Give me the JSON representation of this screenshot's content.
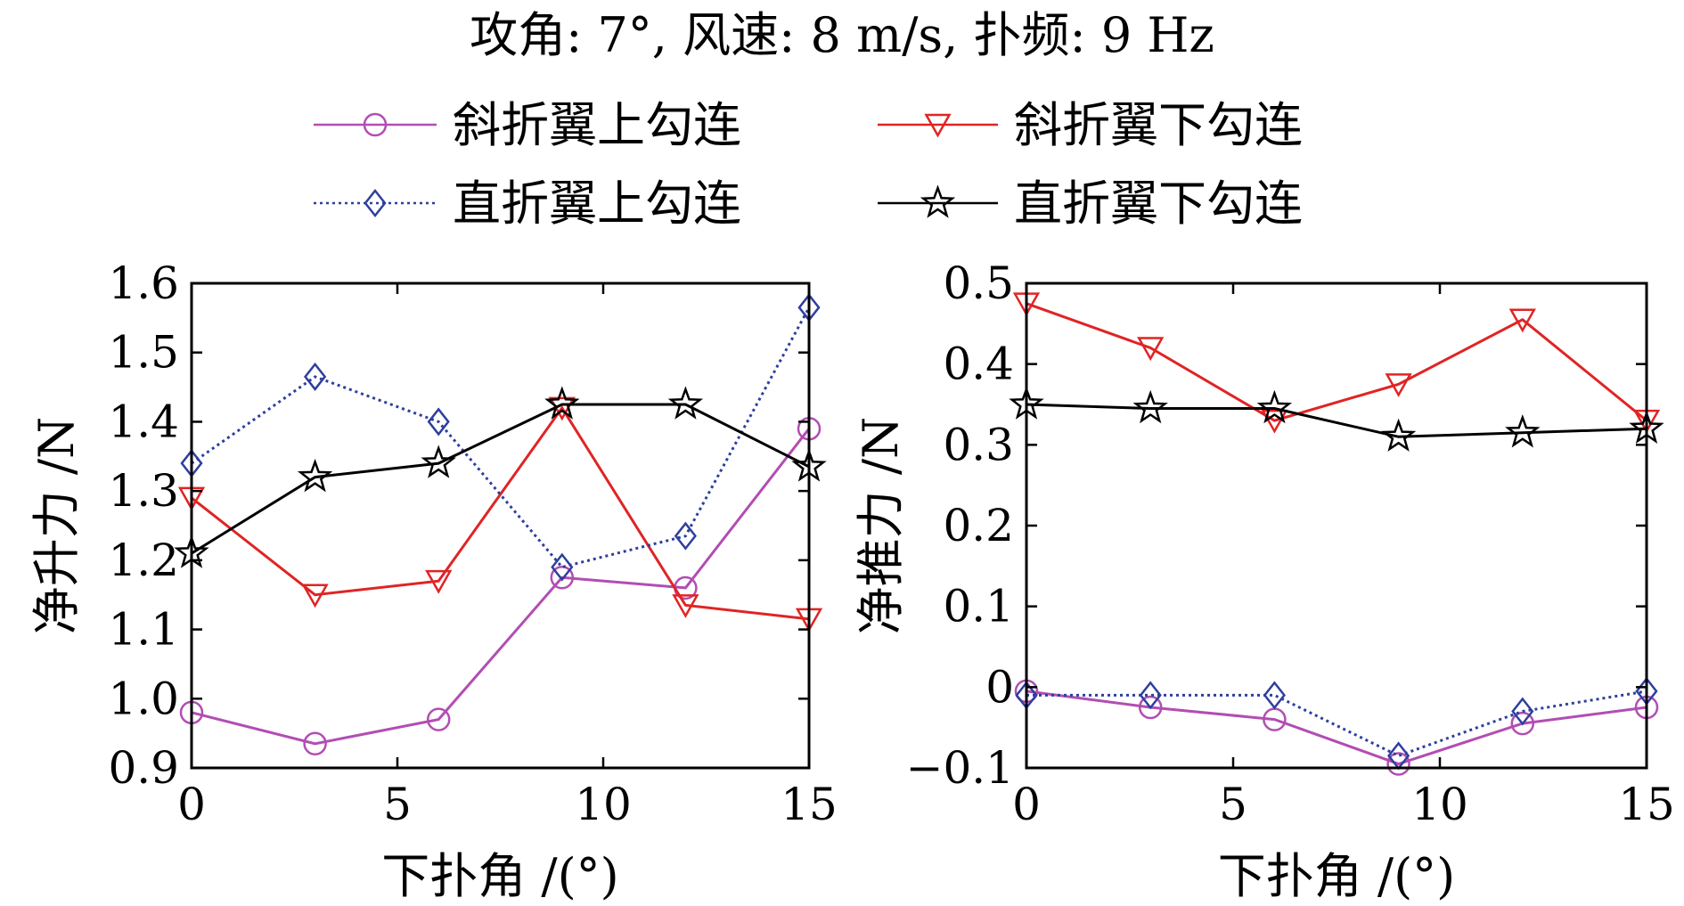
{
  "figure_title": "攻角: 7°, 风速: 8 m/s, 扑频: 9 Hz",
  "legend": [
    {
      "label": "斜折翼上勾连",
      "color": "#B24DB3",
      "marker": "circle",
      "dash": "solid"
    },
    {
      "label": "斜折翼下勾连",
      "color": "#E02424",
      "marker": "triangle-down",
      "dash": "solid"
    },
    {
      "label": "直折翼上勾连",
      "color": "#2E3F9E",
      "marker": "diamond",
      "dash": "dotted"
    },
    {
      "label": "直折翼下勾连",
      "color": "#000000",
      "marker": "star",
      "dash": "solid"
    }
  ],
  "chart_data": [
    {
      "type": "line",
      "xlabel": "下扑角 /(°)",
      "ylabel": "净升力 /N",
      "xlim": [
        0,
        15
      ],
      "ylim": [
        0.9,
        1.6
      ],
      "xticks": [
        0,
        5,
        10,
        15
      ],
      "xtick_labels": [
        "0",
        "5",
        "10",
        "15"
      ],
      "yticks": [
        0.9,
        1.0,
        1.1,
        1.2,
        1.3,
        1.4,
        1.5,
        1.6
      ],
      "ytick_labels": [
        "0.9",
        "1.0",
        "1.1",
        "1.2",
        "1.3",
        "1.4",
        "1.5",
        "1.6"
      ],
      "x": [
        0,
        3,
        6,
        9,
        12,
        15
      ],
      "series": [
        {
          "name": "斜折翼上勾连",
          "values": [
            0.98,
            0.935,
            0.97,
            1.175,
            1.16,
            1.39
          ]
        },
        {
          "name": "斜折翼下勾连",
          "values": [
            1.29,
            1.15,
            1.17,
            1.42,
            1.135,
            1.115
          ]
        },
        {
          "name": "直折翼上勾连",
          "values": [
            1.34,
            1.465,
            1.4,
            1.19,
            1.235,
            1.565
          ]
        },
        {
          "name": "直折翼下勾连",
          "values": [
            1.21,
            1.32,
            1.34,
            1.425,
            1.425,
            1.335
          ]
        }
      ],
      "grid": false,
      "legend_position": "top"
    },
    {
      "type": "line",
      "xlabel": "下扑角 /(°)",
      "ylabel": "净推力 /N",
      "xlim": [
        0,
        15
      ],
      "ylim": [
        -0.1,
        0.5
      ],
      "xticks": [
        0,
        5,
        10,
        15
      ],
      "xtick_labels": [
        "0",
        "5",
        "10",
        "15"
      ],
      "yticks": [
        -0.1,
        0,
        0.1,
        0.2,
        0.3,
        0.4,
        0.5
      ],
      "ytick_labels": [
        "−0.1",
        "0",
        "0.1",
        "0.2",
        "0.3",
        "0.4",
        "0.5"
      ],
      "x": [
        0,
        3,
        6,
        9,
        12,
        15
      ],
      "series": [
        {
          "name": "斜折翼上勾连",
          "values": [
            -0.005,
            -0.025,
            -0.04,
            -0.095,
            -0.045,
            -0.025
          ]
        },
        {
          "name": "斜折翼下勾连",
          "values": [
            0.475,
            0.42,
            0.33,
            0.375,
            0.455,
            0.33
          ]
        },
        {
          "name": "直折翼上勾连",
          "values": [
            -0.01,
            -0.01,
            -0.01,
            -0.085,
            -0.03,
            -0.005
          ]
        },
        {
          "name": "直折翼下勾连",
          "values": [
            0.35,
            0.345,
            0.345,
            0.31,
            0.315,
            0.32
          ]
        }
      ],
      "grid": false,
      "legend_position": "top"
    }
  ]
}
